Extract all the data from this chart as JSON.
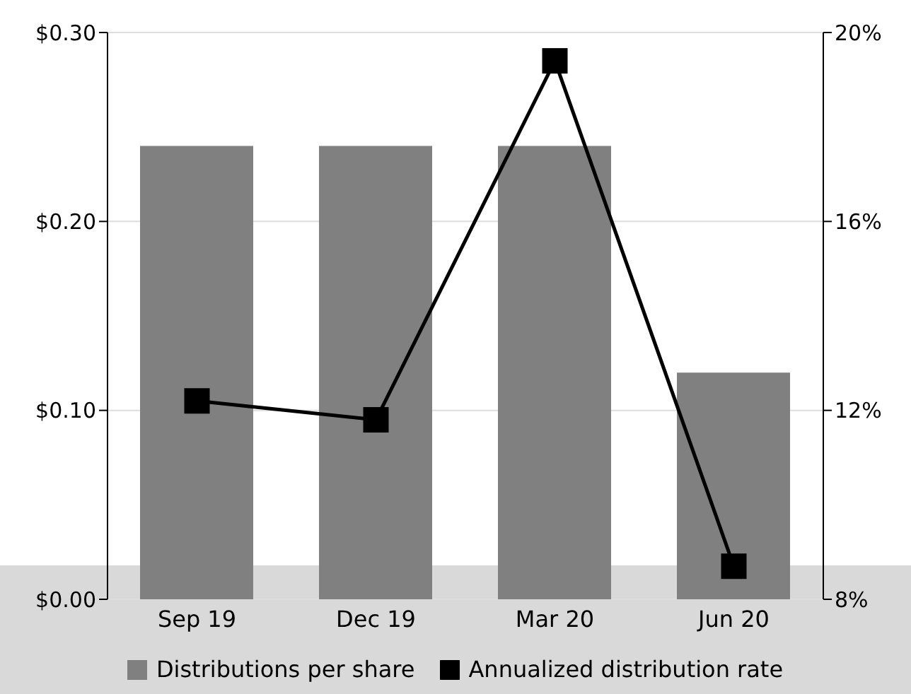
{
  "chart_data": {
    "type": "bar",
    "categories": [
      "Sep 19",
      "Dec 19",
      "Mar 20",
      "Jun 20"
    ],
    "series": [
      {
        "name": "Distributions per share",
        "color": "#808080",
        "values": [
          0.24,
          0.24,
          0.24,
          0.12
        ]
      },
      {
        "name": "Annualized distribution rate",
        "type": "line",
        "axis": "y2",
        "color": "#000000",
        "marker": "square",
        "values": [
          12.2,
          11.8,
          19.4,
          8.7
        ]
      }
    ],
    "ylim": [
      0,
      0.3
    ],
    "yticks": [
      {
        "value": 0,
        "label": "$0.00"
      },
      {
        "value": 0.1,
        "label": "$0.10"
      },
      {
        "value": 0.2,
        "label": "$0.20"
      },
      {
        "value": 0.3,
        "label": "$0.30"
      }
    ],
    "y2lim": [
      8,
      20
    ],
    "y2ticks": [
      {
        "value": 8,
        "label": "8%"
      },
      {
        "value": 12,
        "label": "12%"
      },
      {
        "value": 16,
        "label": "16%"
      },
      {
        "value": 20,
        "label": "20%"
      }
    ],
    "grid": "y",
    "legend": "bottom"
  }
}
